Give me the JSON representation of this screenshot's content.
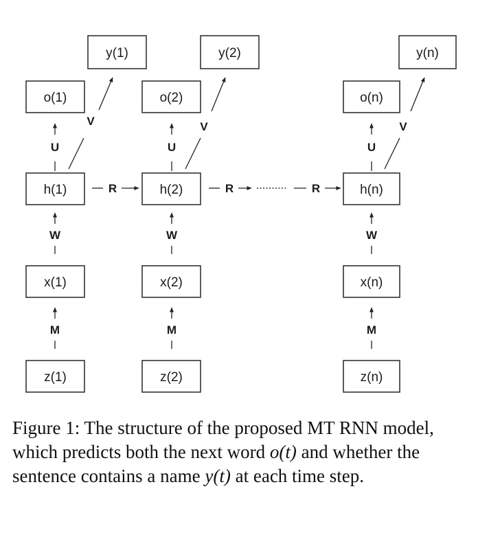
{
  "diagram": {
    "columns": [
      {
        "y": "y(1)",
        "o": "o(1)",
        "h": "h(1)",
        "x": "x(1)",
        "z": "z(1)",
        "v_label": "V",
        "u_label": "U",
        "w_label": "W",
        "m_label": "M"
      },
      {
        "y": "y(2)",
        "o": "o(2)",
        "h": "h(2)",
        "x": "x(2)",
        "z": "z(2)",
        "v_label": "V",
        "u_label": "U",
        "w_label": "W",
        "m_label": "M"
      },
      {
        "y": "y(n)",
        "o": "o(n)",
        "h": "h(n)",
        "x": "x(n)",
        "z": "z(n)",
        "v_label": "V",
        "u_label": "U",
        "w_label": "W",
        "m_label": "M"
      }
    ],
    "recurrent_labels": [
      "R",
      "R",
      "R"
    ]
  },
  "caption": {
    "lead": "Figure 1: The structure of the proposed MT RNN model, which predicts both the next word ",
    "math1": "o(t)",
    "mid": " and whether the sentence contains a name ",
    "math2": "y(t)",
    "tail": " at each time step."
  }
}
